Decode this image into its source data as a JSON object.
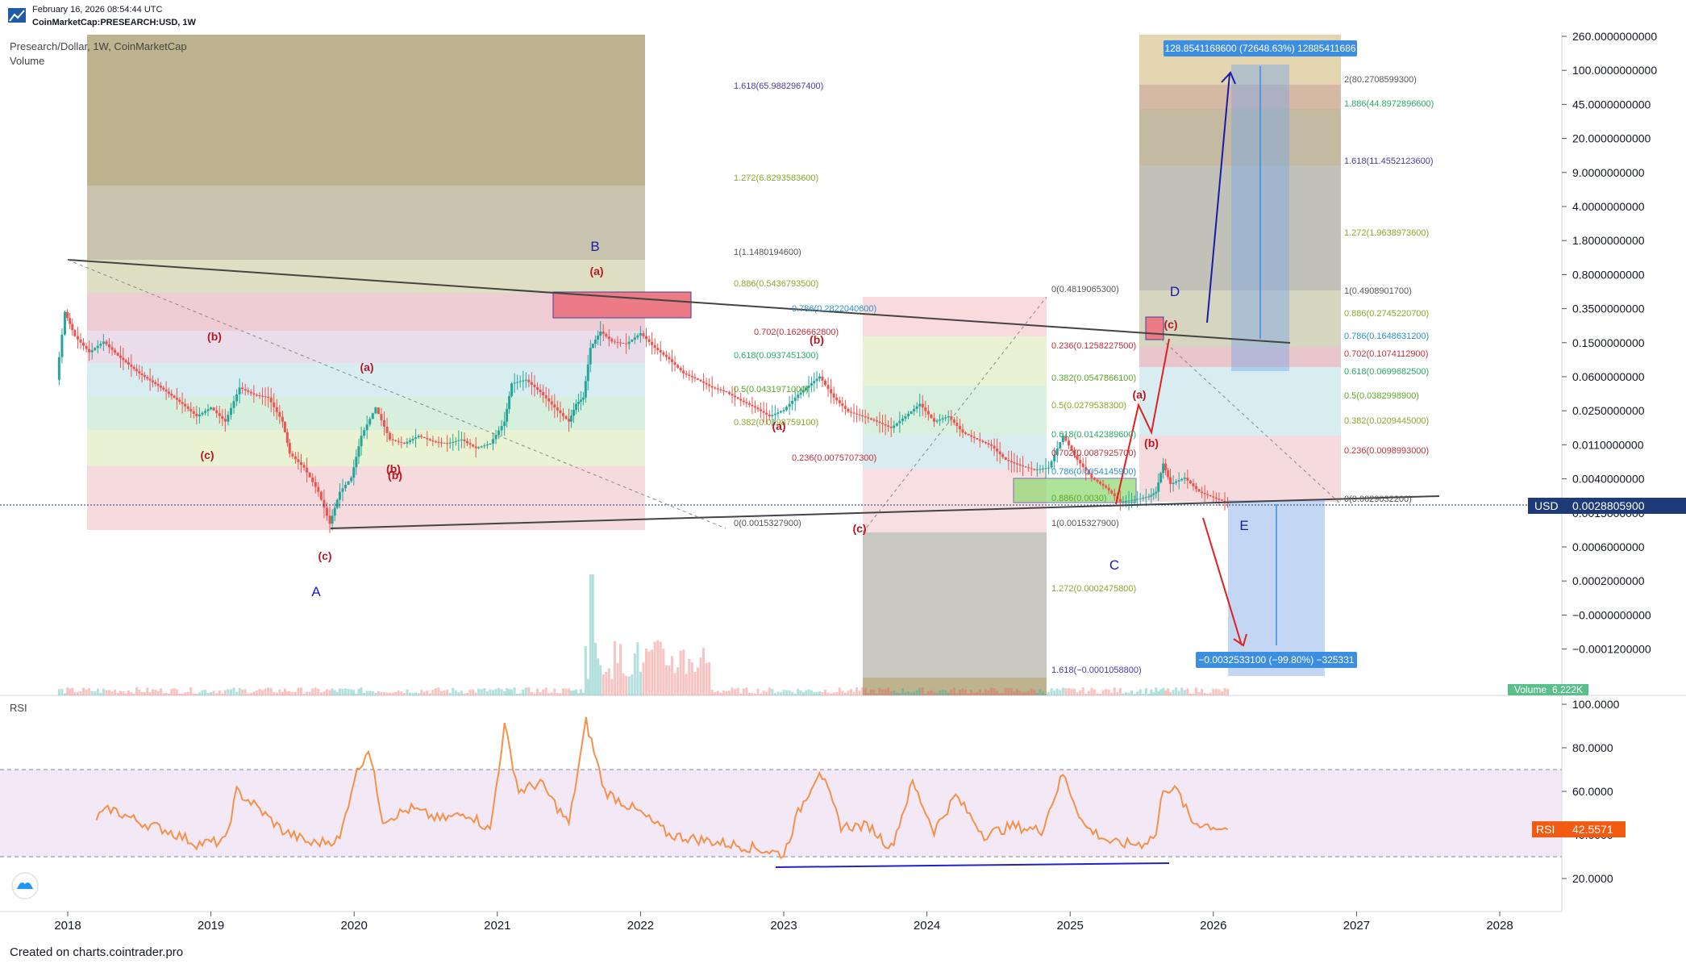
{
  "header": {
    "datetime": "February 16, 2026 08:54:44 UTC",
    "symbol": "CoinMarketCap:PRESEARCH:USD, 1W"
  },
  "legend": {
    "title": "Presearch/Dollar, 1W, CoinMarketCap",
    "volume": "Volume"
  },
  "footer": "Created on charts.cointrader.pro",
  "rsi_label": "RSI",
  "colors": {
    "up": "#26a69a",
    "down": "#ef5350",
    "rsi_line": "#f6914a",
    "rsi_band": "#e9d9f0",
    "price_tag": "#1e3a78",
    "rsi_tag": "#f35b13",
    "measure": "#3c8ee0"
  },
  "chart_data": [
    {
      "type": "line",
      "series": "price",
      "title": "Presearch/Dollar, 1W, CoinMarketCap",
      "y_axis_ticks": [
        "260.0000000000",
        "100.0000000000",
        "45.0000000000",
        "20.0000000000",
        "9.0000000000",
        "4.0000000000",
        "1.8000000000",
        "0.8000000000",
        "0.3500000000",
        "0.1500000000",
        "0.0600000000",
        "0.0250000000",
        "0.0110000000",
        "0.0040000000",
        "0.0015000000",
        "0.0006000000",
        "0.0002000000",
        "−0.0000000000",
        "−0.0001200000"
      ],
      "x_axis_ticks": [
        "2018",
        "2019",
        "2020",
        "2021",
        "2022",
        "2023",
        "2024",
        "2025",
        "2026",
        "2027",
        "2028"
      ],
      "last_price_label": "USD",
      "last_price": "0.0028805900",
      "volume_tag": {
        "label": "Volume",
        "value": "6.222K"
      },
      "price_path": [
        {
          "t": 2017.92,
          "p": 0.1
        },
        {
          "t": 2017.98,
          "p": 0.7
        },
        {
          "t": 2018.05,
          "p": 0.35
        },
        {
          "t": 2018.15,
          "p": 0.22
        },
        {
          "t": 2018.25,
          "p": 0.3
        },
        {
          "t": 2018.35,
          "p": 0.2
        },
        {
          "t": 2018.5,
          "p": 0.12
        },
        {
          "t": 2018.65,
          "p": 0.08
        },
        {
          "t": 2018.8,
          "p": 0.05
        },
        {
          "t": 2018.9,
          "p": 0.035
        },
        {
          "t": 2019.0,
          "p": 0.045
        },
        {
          "t": 2019.1,
          "p": 0.03
        },
        {
          "t": 2019.2,
          "p": 0.08
        },
        {
          "t": 2019.3,
          "p": 0.065
        },
        {
          "t": 2019.4,
          "p": 0.06
        },
        {
          "t": 2019.5,
          "p": 0.03
        },
        {
          "t": 2019.55,
          "p": 0.012
        },
        {
          "t": 2019.65,
          "p": 0.008
        },
        {
          "t": 2019.75,
          "p": 0.004
        },
        {
          "t": 2019.83,
          "p": 0.0016
        },
        {
          "t": 2019.9,
          "p": 0.004
        },
        {
          "t": 2019.98,
          "p": 0.006
        },
        {
          "t": 2020.05,
          "p": 0.02
        },
        {
          "t": 2020.15,
          "p": 0.045
        },
        {
          "t": 2020.25,
          "p": 0.018
        },
        {
          "t": 2020.35,
          "p": 0.016
        },
        {
          "t": 2020.45,
          "p": 0.02
        },
        {
          "t": 2020.55,
          "p": 0.017
        },
        {
          "t": 2020.65,
          "p": 0.016
        },
        {
          "t": 2020.75,
          "p": 0.018
        },
        {
          "t": 2020.85,
          "p": 0.014
        },
        {
          "t": 2020.95,
          "p": 0.016
        },
        {
          "t": 2021.05,
          "p": 0.03
        },
        {
          "t": 2021.1,
          "p": 0.09
        },
        {
          "t": 2021.2,
          "p": 0.1
        },
        {
          "t": 2021.3,
          "p": 0.07
        },
        {
          "t": 2021.4,
          "p": 0.045
        },
        {
          "t": 2021.5,
          "p": 0.03
        },
        {
          "t": 2021.55,
          "p": 0.05
        },
        {
          "t": 2021.6,
          "p": 0.06
        },
        {
          "t": 2021.65,
          "p": 0.25
        },
        {
          "t": 2021.72,
          "p": 0.4
        },
        {
          "t": 2021.8,
          "p": 0.3
        },
        {
          "t": 2021.9,
          "p": 0.28
        },
        {
          "t": 2022.0,
          "p": 0.38
        },
        {
          "t": 2022.1,
          "p": 0.25
        },
        {
          "t": 2022.2,
          "p": 0.18
        },
        {
          "t": 2022.3,
          "p": 0.12
        },
        {
          "t": 2022.4,
          "p": 0.1
        },
        {
          "t": 2022.5,
          "p": 0.08
        },
        {
          "t": 2022.6,
          "p": 0.07
        },
        {
          "t": 2022.7,
          "p": 0.055
        },
        {
          "t": 2022.8,
          "p": 0.045
        },
        {
          "t": 2022.9,
          "p": 0.035
        },
        {
          "t": 2023.0,
          "p": 0.042
        },
        {
          "t": 2023.1,
          "p": 0.065
        },
        {
          "t": 2023.25,
          "p": 0.11
        },
        {
          "t": 2023.35,
          "p": 0.06
        },
        {
          "t": 2023.45,
          "p": 0.04
        },
        {
          "t": 2023.55,
          "p": 0.035
        },
        {
          "t": 2023.65,
          "p": 0.03
        },
        {
          "t": 2023.75,
          "p": 0.025
        },
        {
          "t": 2023.85,
          "p": 0.035
        },
        {
          "t": 2023.95,
          "p": 0.05
        },
        {
          "t": 2024.05,
          "p": 0.03
        },
        {
          "t": 2024.15,
          "p": 0.035
        },
        {
          "t": 2024.25,
          "p": 0.022
        },
        {
          "t": 2024.35,
          "p": 0.018
        },
        {
          "t": 2024.45,
          "p": 0.015
        },
        {
          "t": 2024.55,
          "p": 0.01
        },
        {
          "t": 2024.65,
          "p": 0.0085
        },
        {
          "t": 2024.75,
          "p": 0.0075
        },
        {
          "t": 2024.85,
          "p": 0.008
        },
        {
          "t": 2024.95,
          "p": 0.02
        },
        {
          "t": 2025.05,
          "p": 0.01
        },
        {
          "t": 2025.15,
          "p": 0.006
        },
        {
          "t": 2025.25,
          "p": 0.0045
        },
        {
          "t": 2025.35,
          "p": 0.003
        },
        {
          "t": 2025.45,
          "p": 0.0032
        },
        {
          "t": 2025.55,
          "p": 0.0035
        },
        {
          "t": 2025.6,
          "p": 0.004
        },
        {
          "t": 2025.65,
          "p": 0.009
        },
        {
          "t": 2025.7,
          "p": 0.005
        },
        {
          "t": 2025.8,
          "p": 0.006
        },
        {
          "t": 2025.9,
          "p": 0.004
        },
        {
          "t": 2026.0,
          "p": 0.0034
        },
        {
          "t": 2026.1,
          "p": 0.0029
        }
      ],
      "fib_labels": [
        "1.618(65.9882967400)",
        "1.272(6.8293583600)",
        "1(1.1480194600)",
        "0.886(0.5436793500)",
        "0.786(0.2822040600)",
        "0.702(0.1626662800)",
        "0.618(0.0937451300)",
        "0.5(0.0431971000)",
        "0.382(0.0198759100)",
        "0.236(0.0075707300)",
        "0(0.0015327900)",
        "0(0.4819065300)",
        "0.236(0.1258227500)",
        "0.382(0.0547866100)",
        "0.5(0.0279538300)",
        "0.618(0.0142389600)",
        "0.702(0.0087925700)",
        "0.786(0.0054145900)",
        "0.886(0.0030)",
        "1(0.0015327900)",
        "1.272(0.0002475800)",
        "1.618(−0.0001058800)",
        "2(80.2708599300)",
        "1.886(44.8972896600)",
        "1.618(11.4552123600)",
        "1.272(1.9638973600)",
        "1(0.4908901700)",
        "0.886(0.2745220700)",
        "0.786(0.1648631200)",
        "0.702(0.1074112900)",
        "0.618(0.0699682500)",
        "0.5(0.0382998900)",
        "0.382(0.0209445000)",
        "0.236(0.0098993000)",
        "0(0.0029032200)"
      ],
      "wave_labels": {
        "major": [
          "A",
          "B",
          "C",
          "D",
          "E"
        ],
        "minor": [
          "(a)",
          "(b)",
          "(c)",
          "(b)",
          "(a)",
          "(b)",
          "(c)",
          "(a)",
          "(b)",
          "(c)",
          "(a)",
          "(b)",
          "(c)"
        ]
      },
      "measure_up": "128.8541168600 (72648.63%) 12885411686",
      "measure_down": "−0.0032533100 (−99.80%) −325331"
    },
    {
      "type": "line",
      "series": "rsi",
      "title": "RSI",
      "y_axis_ticks": [
        "100.0000",
        "80.0000",
        "60.0000",
        "40.0000",
        "20.0000"
      ],
      "band": [
        30,
        70
      ],
      "last_value": "42.5571",
      "rsi_path": [
        {
          "t": 2018.2,
          "v": 48
        },
        {
          "t": 2018.3,
          "v": 52
        },
        {
          "t": 2018.5,
          "v": 46
        },
        {
          "t": 2018.7,
          "v": 42
        },
        {
          "t": 2018.9,
          "v": 36
        },
        {
          "t": 2019.1,
          "v": 37
        },
        {
          "t": 2019.18,
          "v": 60
        },
        {
          "t": 2019.3,
          "v": 54
        },
        {
          "t": 2019.5,
          "v": 42
        },
        {
          "t": 2019.7,
          "v": 36
        },
        {
          "t": 2019.9,
          "v": 38
        },
        {
          "t": 2020.0,
          "v": 66
        },
        {
          "t": 2020.1,
          "v": 80
        },
        {
          "t": 2020.2,
          "v": 47
        },
        {
          "t": 2020.4,
          "v": 52
        },
        {
          "t": 2020.6,
          "v": 47
        },
        {
          "t": 2020.8,
          "v": 50
        },
        {
          "t": 2020.95,
          "v": 42
        },
        {
          "t": 2021.05,
          "v": 90
        },
        {
          "t": 2021.15,
          "v": 60
        },
        {
          "t": 2021.3,
          "v": 64
        },
        {
          "t": 2021.5,
          "v": 45
        },
        {
          "t": 2021.62,
          "v": 92
        },
        {
          "t": 2021.75,
          "v": 60
        },
        {
          "t": 2022.0,
          "v": 50
        },
        {
          "t": 2022.2,
          "v": 40
        },
        {
          "t": 2022.5,
          "v": 37
        },
        {
          "t": 2022.8,
          "v": 34
        },
        {
          "t": 2023.0,
          "v": 31
        },
        {
          "t": 2023.1,
          "v": 50
        },
        {
          "t": 2023.25,
          "v": 70
        },
        {
          "t": 2023.4,
          "v": 44
        },
        {
          "t": 2023.6,
          "v": 44
        },
        {
          "t": 2023.75,
          "v": 34
        },
        {
          "t": 2023.9,
          "v": 64
        },
        {
          "t": 2024.05,
          "v": 42
        },
        {
          "t": 2024.2,
          "v": 58
        },
        {
          "t": 2024.4,
          "v": 40
        },
        {
          "t": 2024.6,
          "v": 44
        },
        {
          "t": 2024.8,
          "v": 42
        },
        {
          "t": 2024.95,
          "v": 68
        },
        {
          "t": 2025.1,
          "v": 44
        },
        {
          "t": 2025.3,
          "v": 36
        },
        {
          "t": 2025.5,
          "v": 36
        },
        {
          "t": 2025.6,
          "v": 40
        },
        {
          "t": 2025.65,
          "v": 62
        },
        {
          "t": 2025.75,
          "v": 60
        },
        {
          "t": 2025.85,
          "v": 46
        },
        {
          "t": 2026.0,
          "v": 44
        },
        {
          "t": 2026.1,
          "v": 42.56
        }
      ]
    }
  ]
}
